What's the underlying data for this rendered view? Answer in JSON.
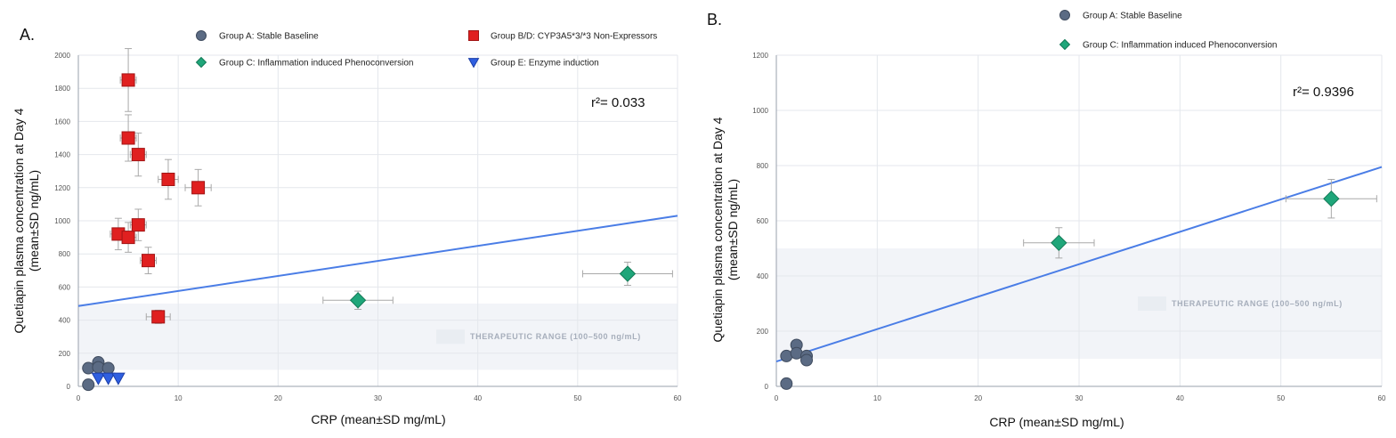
{
  "chart_data": [
    {
      "type": "scatter",
      "panel_label": "A.",
      "xlabel": "CRP (mean±SD mg/mL)",
      "ylabel": "Quetiapin plasma concentration at Day 4",
      "ylabel2": "(mean±SD ng/mL)",
      "xlim": [
        0,
        60
      ],
      "ylim": [
        0,
        2000
      ],
      "xticks": [
        0,
        10,
        20,
        30,
        40,
        50,
        60
      ],
      "yticks": [
        0,
        200,
        400,
        600,
        800,
        1000,
        1200,
        1400,
        1600,
        1800,
        2000
      ],
      "grid": true,
      "annotation": "r²= 0.033",
      "band": {
        "y0": 100,
        "y1": 500,
        "label": "THERAPEUTIC RANGE (100–500 ng/mL)"
      },
      "regression": {
        "x0": 0,
        "y0": 485,
        "x1": 60,
        "y1": 1030
      },
      "legend": [
        {
          "label": "Group A: Stable Baseline",
          "marker": "circle",
          "color": "#5b6b84"
        },
        {
          "label": "Group B/D: CYP3A5*3/*3 Non-Expressors",
          "marker": "square",
          "color": "#e02020"
        },
        {
          "label": "Group C: Inflammation induced Phenoconversion",
          "marker": "diamond",
          "color": "#1fa67a"
        },
        {
          "label": "Group E: Enzyme induction",
          "marker": "triangle",
          "color": "#2f5fe0"
        }
      ],
      "series": [
        {
          "name": "Group A: Stable Baseline",
          "marker": "circle",
          "color": "#5b6b84",
          "points": [
            {
              "x": 1,
              "y": 110
            },
            {
              "x": 2,
              "y": 145
            },
            {
              "x": 2,
              "y": 115
            },
            {
              "x": 3,
              "y": 110
            },
            {
              "x": 1,
              "y": 10
            }
          ]
        },
        {
          "name": "Group B/D: CYP3A5*3/*3 Non-Expressors",
          "marker": "square",
          "color": "#e02020",
          "points": [
            {
              "x": 5,
              "y": 1850,
              "xerr": 0.8,
              "yerr": 190
            },
            {
              "x": 5,
              "y": 1500,
              "xerr": 0.8,
              "yerr": 140
            },
            {
              "x": 6,
              "y": 1400,
              "xerr": 0.8,
              "yerr": 130
            },
            {
              "x": 9,
              "y": 1250,
              "xerr": 1,
              "yerr": 120
            },
            {
              "x": 12,
              "y": 1200,
              "xerr": 1.3,
              "yerr": 110
            },
            {
              "x": 4,
              "y": 920,
              "xerr": 0.8,
              "yerr": 95
            },
            {
              "x": 5,
              "y": 900,
              "xerr": 0.8,
              "yerr": 90
            },
            {
              "x": 6,
              "y": 975,
              "xerr": 0.8,
              "yerr": 95
            },
            {
              "x": 7,
              "y": 760,
              "xerr": 0.8,
              "yerr": 80
            },
            {
              "x": 8,
              "y": 420,
              "xerr": 1.2,
              "yerr": 40
            }
          ]
        },
        {
          "name": "Group C: Inflammation induced Phenoconversion",
          "marker": "diamond",
          "color": "#1fa67a",
          "points": [
            {
              "x": 28,
              "y": 520,
              "xerr": 3.5,
              "yerr": 55
            },
            {
              "x": 55,
              "y": 680,
              "xerr": 4.5,
              "yerr": 70
            }
          ]
        },
        {
          "name": "Group E: Enzyme induction",
          "marker": "triangle",
          "color": "#2f5fe0",
          "points": [
            {
              "x": 2,
              "y": 50
            },
            {
              "x": 3,
              "y": 50
            },
            {
              "x": 4,
              "y": 50
            }
          ]
        }
      ]
    },
    {
      "type": "scatter",
      "panel_label": "B.",
      "xlabel": "CRP (mean±SD mg/mL)",
      "ylabel": "Quetiapin plasma concentration at Day 4",
      "ylabel2": "(mean±SD ng/mL)",
      "xlim": [
        0,
        60
      ],
      "ylim": [
        0,
        1200
      ],
      "xticks": [
        0,
        10,
        20,
        30,
        40,
        50,
        60
      ],
      "yticks": [
        0,
        200,
        400,
        600,
        800,
        1000,
        1200
      ],
      "grid": true,
      "annotation": "r²= 0.9396",
      "band": {
        "y0": 100,
        "y1": 500,
        "label": "THERAPEUTIC RANGE (100–500 ng/mL)"
      },
      "regression": {
        "x0": 0,
        "y0": 90,
        "x1": 60,
        "y1": 795
      },
      "legend": [
        {
          "label": "Group A: Stable Baseline",
          "marker": "circle",
          "color": "#5b6b84"
        },
        {
          "label": "Group C: Inflammation induced Phenoconversion",
          "marker": "diamond",
          "color": "#1fa67a"
        }
      ],
      "series": [
        {
          "name": "Group A: Stable Baseline",
          "marker": "circle",
          "color": "#5b6b84",
          "points": [
            {
              "x": 1,
              "y": 110
            },
            {
              "x": 2,
              "y": 150
            },
            {
              "x": 2,
              "y": 120
            },
            {
              "x": 3,
              "y": 110
            },
            {
              "x": 3,
              "y": 95
            },
            {
              "x": 1,
              "y": 10
            }
          ]
        },
        {
          "name": "Group C: Inflammation induced Phenoconversion",
          "marker": "diamond",
          "color": "#1fa67a",
          "points": [
            {
              "x": 28,
              "y": 520,
              "xerr": 3.5,
              "yerr": 55
            },
            {
              "x": 55,
              "y": 680,
              "xerr": 4.5,
              "yerr": 70
            }
          ]
        }
      ]
    }
  ]
}
